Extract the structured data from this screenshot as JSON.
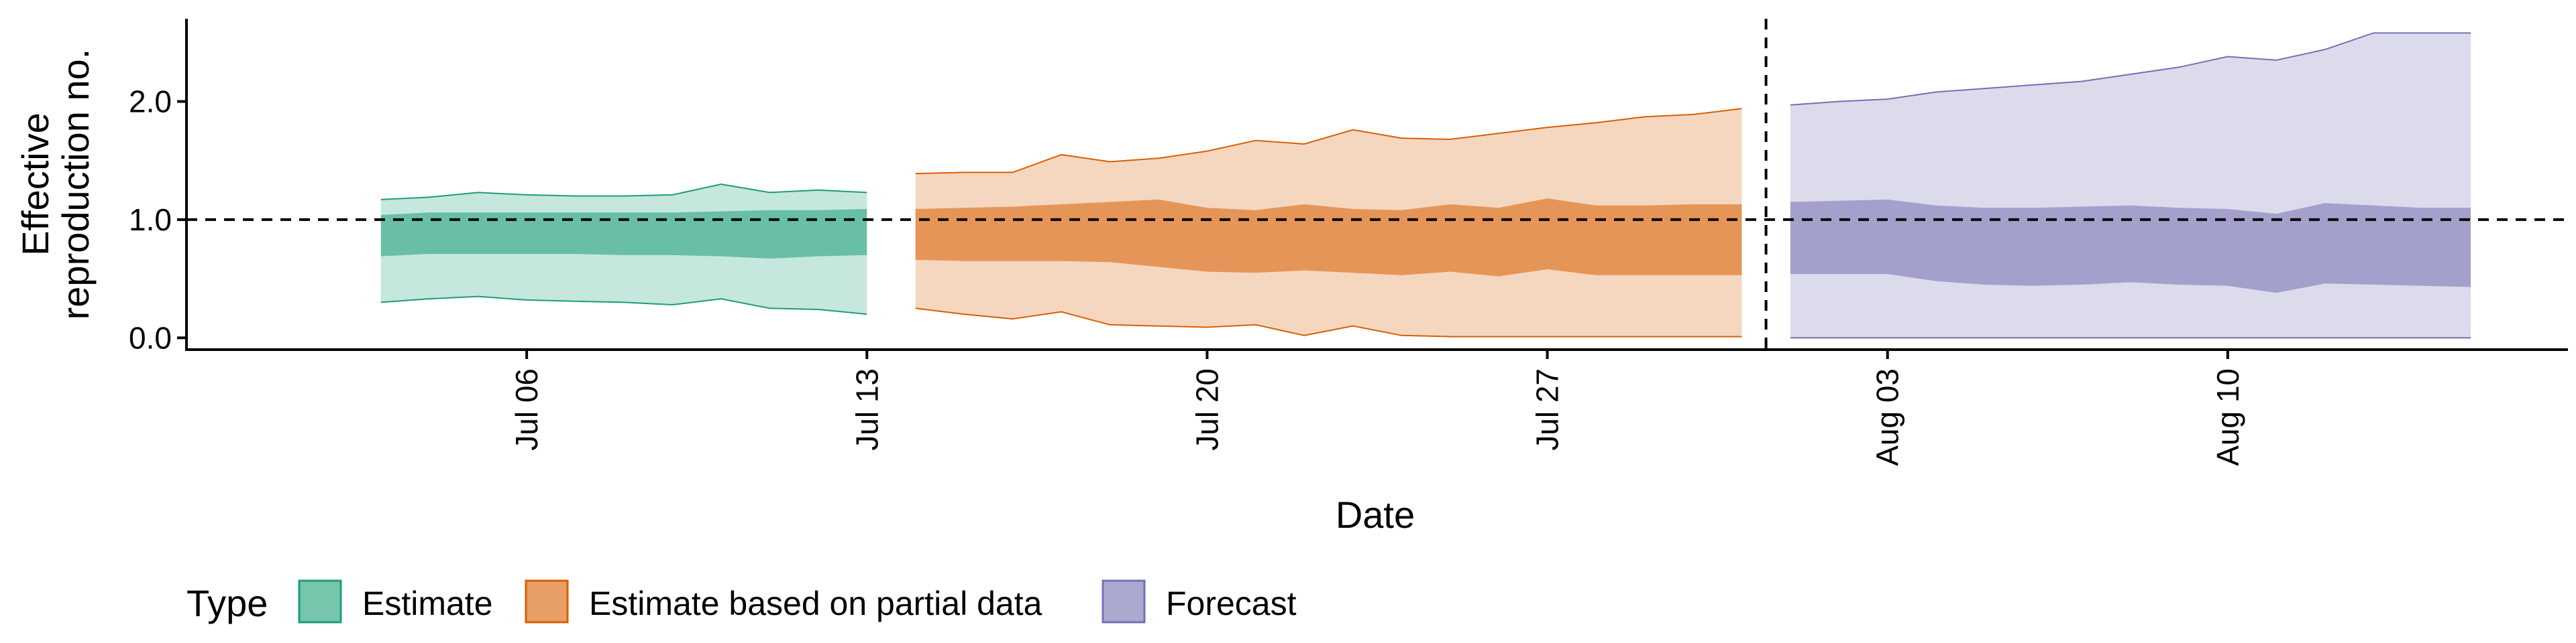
{
  "chart_data": {
    "type": "area",
    "xlabel": "Date",
    "ylabel_lines": [
      "Effective",
      "reproduction no."
    ],
    "x_domain": [
      "2020-06-29",
      "2020-08-17"
    ],
    "ylim": [
      -0.1,
      2.7
    ],
    "y_ticks": [
      0.0,
      1.0,
      2.0
    ],
    "y_tick_labels": [
      "0.0",
      "1.0",
      "2.0"
    ],
    "x_ticks": [
      {
        "date": "2020-07-06",
        "label": "Jul 06"
      },
      {
        "date": "2020-07-13",
        "label": "Jul 13"
      },
      {
        "date": "2020-07-20",
        "label": "Jul 20"
      },
      {
        "date": "2020-07-27",
        "label": "Jul 27"
      },
      {
        "date": "2020-08-03",
        "label": "Aug 03"
      },
      {
        "date": "2020-08-10",
        "label": "Aug 10"
      }
    ],
    "reference_hline_y": 1.0,
    "reference_vline_date": "2020-07-31",
    "grid": false,
    "legend": {
      "title": "Type",
      "position": "bottom-left",
      "entries": [
        {
          "label": "Estimate",
          "key": "estimate"
        },
        {
          "label": "Estimate based on partial data",
          "key": "partial"
        },
        {
          "label": "Forecast",
          "key": "forecast"
        }
      ]
    },
    "series": [
      {
        "key": "estimate",
        "fill": "#1b9e77",
        "dates": [
          "2020-07-03",
          "2020-07-04",
          "2020-07-05",
          "2020-07-06",
          "2020-07-07",
          "2020-07-08",
          "2020-07-09",
          "2020-07-10",
          "2020-07-11",
          "2020-07-12",
          "2020-07-13"
        ],
        "outer_lower": [
          0.3,
          0.33,
          0.35,
          0.32,
          0.31,
          0.3,
          0.28,
          0.33,
          0.25,
          0.24,
          0.2
        ],
        "outer_upper": [
          1.17,
          1.19,
          1.23,
          1.21,
          1.2,
          1.2,
          1.21,
          1.3,
          1.23,
          1.25,
          1.23
        ],
        "inner_lower": [
          0.69,
          0.71,
          0.71,
          0.71,
          0.71,
          0.7,
          0.7,
          0.69,
          0.67,
          0.69,
          0.7
        ],
        "inner_upper": [
          1.04,
          1.06,
          1.06,
          1.06,
          1.06,
          1.06,
          1.06,
          1.07,
          1.08,
          1.08,
          1.09
        ]
      },
      {
        "key": "partial",
        "fill": "#d95f02",
        "dates": [
          "2020-07-14",
          "2020-07-15",
          "2020-07-16",
          "2020-07-17",
          "2020-07-18",
          "2020-07-19",
          "2020-07-20",
          "2020-07-21",
          "2020-07-22",
          "2020-07-23",
          "2020-07-24",
          "2020-07-25",
          "2020-07-26",
          "2020-07-27",
          "2020-07-28",
          "2020-07-29",
          "2020-07-30",
          "2020-07-31"
        ],
        "outer_lower": [
          0.25,
          0.2,
          0.16,
          0.22,
          0.11,
          0.1,
          0.09,
          0.11,
          0.02,
          0.1,
          0.02,
          0.01,
          0.01,
          0.01,
          0.01,
          0.01,
          0.01,
          0.01
        ],
        "outer_upper": [
          1.39,
          1.4,
          1.4,
          1.55,
          1.49,
          1.52,
          1.58,
          1.67,
          1.64,
          1.76,
          1.69,
          1.68,
          1.73,
          1.78,
          1.82,
          1.87,
          1.89,
          1.94
        ],
        "inner_lower": [
          0.66,
          0.65,
          0.65,
          0.65,
          0.64,
          0.6,
          0.56,
          0.55,
          0.57,
          0.55,
          0.53,
          0.56,
          0.52,
          0.58,
          0.53,
          0.53,
          0.53,
          0.53
        ],
        "inner_upper": [
          1.09,
          1.1,
          1.11,
          1.13,
          1.15,
          1.17,
          1.1,
          1.08,
          1.13,
          1.09,
          1.08,
          1.13,
          1.1,
          1.18,
          1.12,
          1.12,
          1.13,
          1.13
        ]
      },
      {
        "key": "forecast",
        "fill": "#7570b3",
        "dates": [
          "2020-08-01",
          "2020-08-02",
          "2020-08-03",
          "2020-08-04",
          "2020-08-05",
          "2020-08-06",
          "2020-08-07",
          "2020-08-08",
          "2020-08-09",
          "2020-08-10",
          "2020-08-11",
          "2020-08-12",
          "2020-08-13",
          "2020-08-14",
          "2020-08-15"
        ],
        "outer_lower": [
          0.0,
          0.0,
          0.0,
          0.0,
          0.0,
          0.0,
          0.0,
          0.0,
          0.0,
          0.0,
          0.0,
          0.0,
          0.0,
          0.0,
          0.0
        ],
        "outer_upper": [
          1.97,
          2.0,
          2.02,
          2.08,
          2.11,
          2.14,
          2.17,
          2.23,
          2.29,
          2.38,
          2.35,
          2.44,
          2.58,
          2.58,
          2.58
        ],
        "inner_lower": [
          0.54,
          0.54,
          0.54,
          0.48,
          0.45,
          0.44,
          0.45,
          0.47,
          0.45,
          0.44,
          0.38,
          0.46,
          0.45,
          0.44,
          0.43
        ],
        "inner_upper": [
          1.15,
          1.16,
          1.17,
          1.12,
          1.1,
          1.1,
          1.11,
          1.12,
          1.1,
          1.09,
          1.05,
          1.14,
          1.12,
          1.1,
          1.1
        ]
      }
    ]
  }
}
